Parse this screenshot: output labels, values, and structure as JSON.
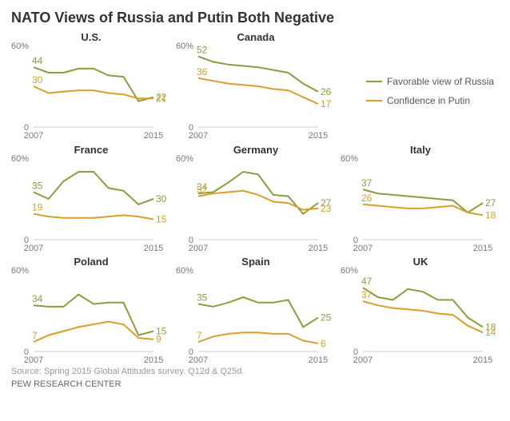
{
  "title": "NATO Views of Russia and Putin Both Negative",
  "title_fontsize": 18,
  "source": "Source: Spring 2015 Global Attitudes survey. Q12d & Q25d.",
  "source_fontsize": 11,
  "footer": "PEW RESEARCH CENTER",
  "footer_fontsize": 11,
  "colors": {
    "russia": "#8b9e3f",
    "putin": "#d89f2a",
    "axis": "#cccccc",
    "grid": "#e0e0e0",
    "tick_text": "#888888",
    "title_text": "#333333"
  },
  "legend": {
    "items": [
      {
        "label": "Favorable view of Russia",
        "color_key": "russia"
      },
      {
        "label": "Confidence in Putin",
        "color_key": "putin"
      }
    ],
    "fontsize": 12
  },
  "chart_common": {
    "x_years": [
      2007,
      2008,
      2009,
      2010,
      2011,
      2012,
      2013,
      2014,
      2015
    ],
    "x_range": [
      2007,
      2015
    ],
    "y_range": [
      0,
      60
    ],
    "y_ticks_major": [
      0,
      60
    ],
    "y_tick_labels": [
      "0",
      "60%"
    ],
    "x_tick_labels": [
      "2007",
      "2015"
    ],
    "panel_title_fontsize": 13,
    "tick_fontsize": 11,
    "value_fontsize": 12,
    "line_width": 2
  },
  "panels": [
    {
      "title": "U.S.",
      "russia": {
        "values": [
          44,
          40,
          40,
          43,
          43,
          38,
          37,
          19,
          22
        ],
        "start_label": "44",
        "end_label": "22"
      },
      "putin": {
        "values": [
          30,
          25,
          26,
          27,
          27,
          25,
          24,
          21,
          21
        ],
        "start_label": "30",
        "end_label": "21"
      }
    },
    {
      "title": "Canada",
      "russia": {
        "values": [
          52,
          48,
          46,
          45,
          44,
          42,
          40,
          32,
          26
        ],
        "start_label": "52",
        "end_label": "26"
      },
      "putin": {
        "values": [
          36,
          34,
          32,
          31,
          30,
          28,
          27,
          22,
          17
        ],
        "start_label": "36",
        "end_label": "17"
      }
    },
    {
      "title": "",
      "legend_panel": true
    },
    {
      "title": "France",
      "russia": {
        "values": [
          35,
          30,
          43,
          50,
          50,
          38,
          36,
          26,
          30
        ],
        "start_label": "35",
        "end_label": "30"
      },
      "putin": {
        "values": [
          19,
          17,
          16,
          16,
          16,
          17,
          18,
          17,
          15
        ],
        "start_label": "19",
        "end_label": "15"
      }
    },
    {
      "title": "Germany",
      "russia": {
        "values": [
          34,
          35,
          42,
          50,
          48,
          33,
          32,
          19,
          27
        ],
        "start_label": "34",
        "end_label": "27"
      },
      "putin": {
        "values": [
          32,
          34,
          35,
          36,
          33,
          28,
          27,
          22,
          23
        ],
        "start_label": "32",
        "end_label": "23"
      }
    },
    {
      "title": "Italy",
      "russia": {
        "values": [
          37,
          34,
          33,
          32,
          31,
          30,
          29,
          20,
          27
        ],
        "start_label": "37",
        "end_label": "27"
      },
      "putin": {
        "values": [
          26,
          25,
          24,
          23,
          23,
          24,
          25,
          20,
          18
        ],
        "start_label": "26",
        "end_label": "18"
      }
    },
    {
      "title": "Poland",
      "russia": {
        "values": [
          34,
          33,
          33,
          42,
          35,
          36,
          36,
          12,
          15
        ],
        "start_label": "34",
        "end_label": "15"
      },
      "putin": {
        "values": [
          7,
          12,
          15,
          18,
          20,
          22,
          20,
          10,
          9
        ],
        "start_label": "7",
        "end_label": "9"
      }
    },
    {
      "title": "Spain",
      "russia": {
        "values": [
          35,
          33,
          36,
          40,
          36,
          36,
          38,
          18,
          25
        ],
        "start_label": "35",
        "end_label": "25"
      },
      "putin": {
        "values": [
          7,
          11,
          13,
          14,
          14,
          13,
          13,
          8,
          6
        ],
        "start_label": "7",
        "end_label": "6"
      }
    },
    {
      "title": "UK",
      "russia": {
        "values": [
          47,
          40,
          38,
          46,
          44,
          38,
          38,
          25,
          18
        ],
        "start_label": "47",
        "end_label": "18"
      },
      "putin": {
        "values": [
          37,
          34,
          32,
          31,
          30,
          28,
          27,
          19,
          14
        ],
        "start_label": "37",
        "end_label": "14"
      }
    }
  ]
}
